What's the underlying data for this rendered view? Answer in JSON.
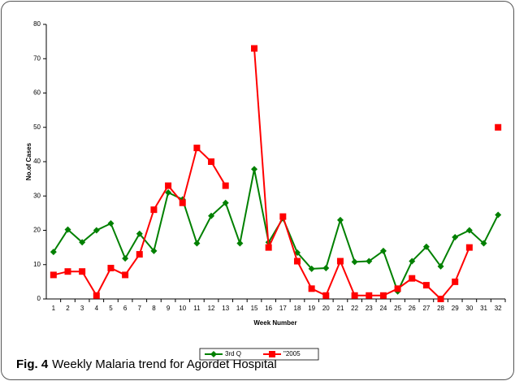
{
  "chart_data": {
    "type": "line",
    "ylabel": "No.of Cases",
    "xlabel": "Week Number",
    "categories": [
      "1",
      "2",
      "3",
      "4",
      "5",
      "6",
      "7",
      "8",
      "9",
      "10",
      "11",
      "12",
      "13",
      "14",
      "15",
      "16",
      "17",
      "18",
      "19",
      "20",
      "21",
      "22",
      "23",
      "24",
      "25",
      "26",
      "27",
      "28",
      "29",
      "30",
      "31",
      "32"
    ],
    "series": [
      {
        "name": "3rd Q",
        "color": "#008000",
        "marker": "diamond",
        "values": [
          13.7,
          20.2,
          16.5,
          20,
          22,
          11.8,
          19,
          14,
          31,
          29,
          16.2,
          24.2,
          28,
          16.2,
          37.8,
          16.5,
          23.5,
          13.5,
          8.8,
          9,
          23,
          10.8,
          11,
          14,
          2.2,
          11,
          15.2,
          9.5,
          18,
          20,
          16.2,
          24.5
        ]
      },
      {
        "name": "\"2005",
        "color": "#ff0000",
        "marker": "square",
        "values": [
          7,
          8,
          8,
          1,
          9,
          7,
          13,
          26,
          33,
          28,
          44,
          40,
          33,
          null,
          73,
          15,
          24,
          11,
          3,
          1,
          11,
          1,
          1,
          1,
          3,
          6,
          4,
          0,
          5,
          15,
          null,
          50
        ]
      }
    ],
    "ylim": [
      0,
      80
    ],
    "yticks": [
      0,
      10,
      20,
      30,
      40,
      50,
      60,
      70,
      80
    ],
    "grid": false,
    "legend": "bottom"
  },
  "caption": {
    "label": "Fig. 4",
    "text": "Weekly Malaria trend for Agordet Hospital"
  }
}
